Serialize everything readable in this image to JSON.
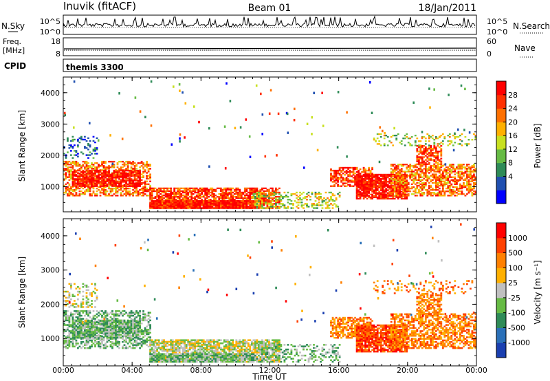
{
  "header": {
    "station": "Inuvik (fitACF)",
    "beam": "Beam 01",
    "date": "18/Jan/2011"
  },
  "top_panels": {
    "nsky_label": "N.Sky",
    "nsearch_label": "N.Search",
    "nsky_ticks": [
      "10^5",
      "10^0"
    ],
    "nsearch_ticks": [
      "10^5",
      "10^0"
    ],
    "freq_label_line1": "Freq.",
    "freq_label_line2": "[MHz]",
    "freq_ticks": [
      "18",
      "8"
    ],
    "nave_label": "Nave",
    "nave_ticks": [
      "60",
      "0"
    ],
    "cpid_label": "CPID",
    "cpid_value": "themis 3300"
  },
  "chart_data": [
    {
      "type": "heatmap",
      "name": "power-panel",
      "ylabel": "Slant Range [km]",
      "xlabel": "Time UT",
      "xlim": [
        0,
        24
      ],
      "ylim": [
        200,
        4500
      ],
      "x_tick_labels": [
        "00:00",
        "04:00",
        "08:00",
        "12:00",
        "16:00",
        "20:00",
        "00:00"
      ],
      "x_tick_values": [
        0,
        4,
        8,
        12,
        16,
        20,
        24
      ],
      "y_tick_values": [
        1000,
        2000,
        3000,
        4000
      ],
      "colorbar": {
        "label": "Power [dB]",
        "tick_labels": [
          "28",
          "24",
          "20",
          "16",
          "12",
          "8",
          "4"
        ],
        "colors": [
          "#0000ff",
          "#1f4fb0",
          "#2e8b57",
          "#66bb44",
          "#c8e020",
          "#ffb000",
          "#ff7000",
          "#ff3000",
          "#ff0000"
        ]
      }
    },
    {
      "type": "heatmap",
      "name": "velocity-panel",
      "ylabel": "Slant Range [km]",
      "xlabel": "Time UT",
      "xlim": [
        0,
        24
      ],
      "ylim": [
        200,
        4500
      ],
      "x_tick_labels": [
        "00:00",
        "04:00",
        "08:00",
        "12:00",
        "16:00",
        "20:00",
        "00:00"
      ],
      "x_tick_values": [
        0,
        4,
        8,
        12,
        16,
        20,
        24
      ],
      "y_tick_values": [
        1000,
        2000,
        3000,
        4000
      ],
      "colorbar": {
        "label": "Velocity [m s⁻¹]",
        "tick_labels": [
          "1000",
          "500",
          "100",
          "25",
          "-25",
          "-100",
          "-500",
          "-1000"
        ],
        "colors": [
          "#1a3fb0",
          "#2a70b8",
          "#2e8b57",
          "#66bb44",
          "#c0c0c0",
          "#ffb000",
          "#ff8000",
          "#ff4000",
          "#ff0000"
        ]
      }
    }
  ],
  "colors": {
    "power_strong": "#ff0000",
    "power_mid": "#ff7000",
    "velocity_green": "#3a9a50",
    "velocity_orange": "#ff7a20",
    "ground_gray": "#c0c0c0"
  }
}
